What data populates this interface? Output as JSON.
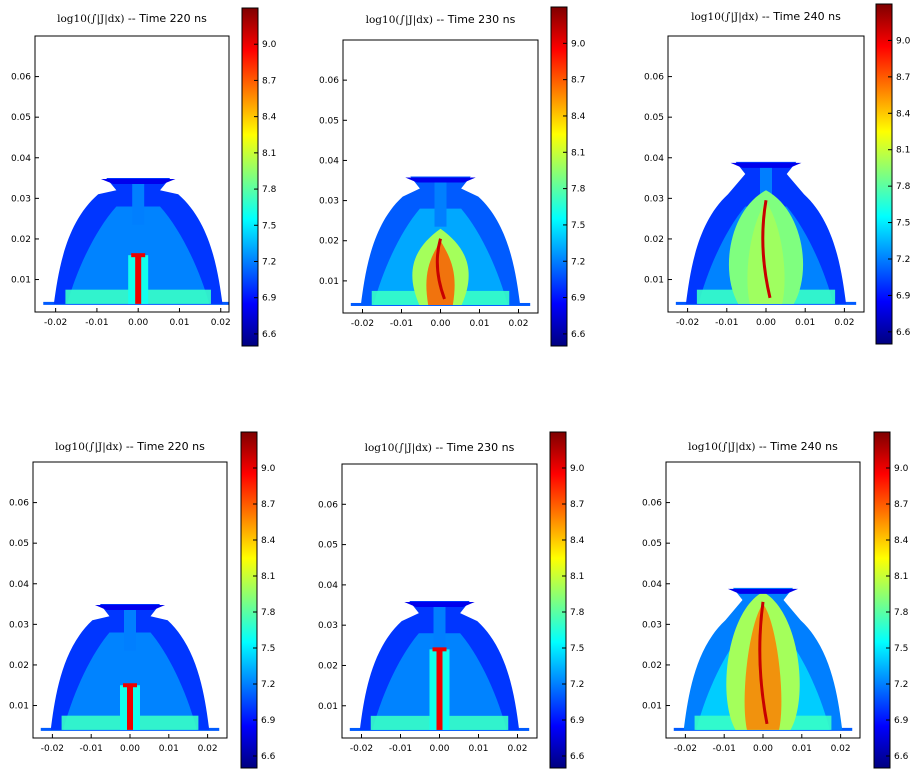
{
  "figure": {
    "panel_count": 6,
    "colormap": "jet",
    "colors": {
      "background": "#ffffff",
      "axes": "#000000",
      "jet_stops": [
        "#00007f",
        "#0000ff",
        "#007fff",
        "#00ffff",
        "#7fff7f",
        "#ffff00",
        "#ff7f00",
        "#ff0000",
        "#7f0000"
      ]
    }
  },
  "chart_data": [
    {
      "type": "heatmap",
      "row": 1,
      "col": 1,
      "title": {
        "math": "log10(∫|J|dx)",
        "text": "-- Time 220 ns"
      },
      "time_ns": 220,
      "xlim": [
        -0.025,
        0.022
      ],
      "ylim": [
        0.002,
        0.07
      ],
      "x_ticks": [
        "-0.02",
        "-0.01",
        "0.00",
        "0.01",
        "0.02"
      ],
      "y_ticks": [
        "0.01",
        "0.02",
        "0.03",
        "0.04",
        "0.05",
        "0.06"
      ],
      "colorbar": {
        "range": [
          6.5,
          9.3
        ],
        "ticks": [
          "9.0",
          "8.7",
          "8.4",
          "8.1",
          "7.8",
          "7.5",
          "7.2",
          "6.9",
          "6.6"
        ]
      },
      "features": {
        "shape": "bell",
        "cap_top": 0.035,
        "core": "thin-column",
        "core_top": 0.016,
        "core_level": 9.0,
        "shell_level": 7.0
      }
    },
    {
      "type": "heatmap",
      "row": 1,
      "col": 2,
      "title": {
        "math": "log10(∫|J|dx)",
        "text": "-- Time 230 ns"
      },
      "time_ns": 230,
      "xlim": [
        -0.025,
        0.025
      ],
      "ylim": [
        0.002,
        0.07
      ],
      "x_ticks": [
        "-0.02",
        "-0.01",
        "0.00",
        "0.01",
        "0.02"
      ],
      "y_ticks": [
        "0.01",
        "0.02",
        "0.03",
        "0.04",
        "0.05",
        "0.06"
      ],
      "colorbar": {
        "range": [
          6.5,
          9.3
        ],
        "ticks": [
          "9.0",
          "8.7",
          "8.4",
          "8.1",
          "7.8",
          "7.5",
          "7.2",
          "6.9",
          "6.6"
        ]
      },
      "features": {
        "shape": "bell",
        "cap_top": 0.036,
        "core": "turbulent-bulb",
        "core_top": 0.023,
        "core_level": 8.7,
        "shell_level": 7.1
      }
    },
    {
      "type": "heatmap",
      "row": 1,
      "col": 3,
      "title": {
        "math": "log10(∫|J|dx)",
        "text": "-- Time 240 ns"
      },
      "time_ns": 240,
      "xlim": [
        -0.025,
        0.025
      ],
      "ylim": [
        0.002,
        0.07
      ],
      "x_ticks": [
        "-0.02",
        "-0.01",
        "0.00",
        "0.01",
        "0.02"
      ],
      "y_ticks": [
        "0.01",
        "0.02",
        "0.03",
        "0.04",
        "0.05",
        "0.06"
      ],
      "colorbar": {
        "range": [
          6.5,
          9.3
        ],
        "ticks": [
          "9.0",
          "8.7",
          "8.4",
          "8.1",
          "7.8",
          "7.5",
          "7.2",
          "6.9",
          "6.6"
        ]
      },
      "features": {
        "shape": "bell",
        "cap_top": 0.039,
        "core": "wide-bulb",
        "core_top": 0.032,
        "core_level": 8.0,
        "shell_level": 7.0
      }
    },
    {
      "type": "heatmap",
      "row": 2,
      "col": 1,
      "title": {
        "math": "log10(∫|J|dx)",
        "text": "-- Time 220 ns"
      },
      "time_ns": 220,
      "xlim": [
        -0.025,
        0.025
      ],
      "ylim": [
        0.002,
        0.07
      ],
      "x_ticks": [
        "-0.02",
        "-0.01",
        "0.00",
        "0.01",
        "0.02"
      ],
      "y_ticks": [
        "0.01",
        "0.02",
        "0.03",
        "0.04",
        "0.05",
        "0.06"
      ],
      "colorbar": {
        "range": [
          6.5,
          9.3
        ],
        "ticks": [
          "9.0",
          "8.7",
          "8.4",
          "8.1",
          "7.8",
          "7.5",
          "7.2",
          "6.9",
          "6.6"
        ]
      },
      "features": {
        "shape": "bell",
        "cap_top": 0.035,
        "core": "thin-column",
        "core_top": 0.015,
        "core_level": 9.0,
        "shell_level": 7.0
      }
    },
    {
      "type": "heatmap",
      "row": 2,
      "col": 2,
      "title": {
        "math": "log10(∫|J|dx)",
        "text": "-- Time 230 ns"
      },
      "time_ns": 230,
      "xlim": [
        -0.025,
        0.025
      ],
      "ylim": [
        0.002,
        0.07
      ],
      "x_ticks": [
        "-0.02",
        "-0.01",
        "0.00",
        "0.01",
        "0.02"
      ],
      "y_ticks": [
        "0.01",
        "0.02",
        "0.03",
        "0.04",
        "0.05",
        "0.06"
      ],
      "colorbar": {
        "range": [
          6.5,
          9.3
        ],
        "ticks": [
          "9.0",
          "8.7",
          "8.4",
          "8.1",
          "7.8",
          "7.5",
          "7.2",
          "6.9",
          "6.6"
        ]
      },
      "features": {
        "shape": "bell",
        "cap_top": 0.036,
        "core": "thin-column",
        "core_top": 0.024,
        "core_level": 9.0,
        "shell_level": 7.0
      }
    },
    {
      "type": "heatmap",
      "row": 2,
      "col": 3,
      "title": {
        "math": "log10(∫|J|dx)",
        "text": "-- Time 240 ns"
      },
      "time_ns": 240,
      "xlim": [
        -0.025,
        0.025
      ],
      "ylim": [
        0.002,
        0.07
      ],
      "x_ticks": [
        "-0.02",
        "-0.01",
        "0.00",
        "0.01",
        "0.02"
      ],
      "y_ticks": [
        "0.01",
        "0.02",
        "0.03",
        "0.04",
        "0.05",
        "0.06"
      ],
      "colorbar": {
        "range": [
          6.5,
          9.3
        ],
        "ticks": [
          "9.0",
          "8.7",
          "8.4",
          "8.1",
          "7.8",
          "7.5",
          "7.2",
          "6.9",
          "6.6"
        ]
      },
      "features": {
        "shape": "bell",
        "cap_top": 0.039,
        "core": "wide-bulb-hot",
        "core_top": 0.038,
        "core_level": 8.6,
        "shell_level": 7.2
      }
    }
  ]
}
